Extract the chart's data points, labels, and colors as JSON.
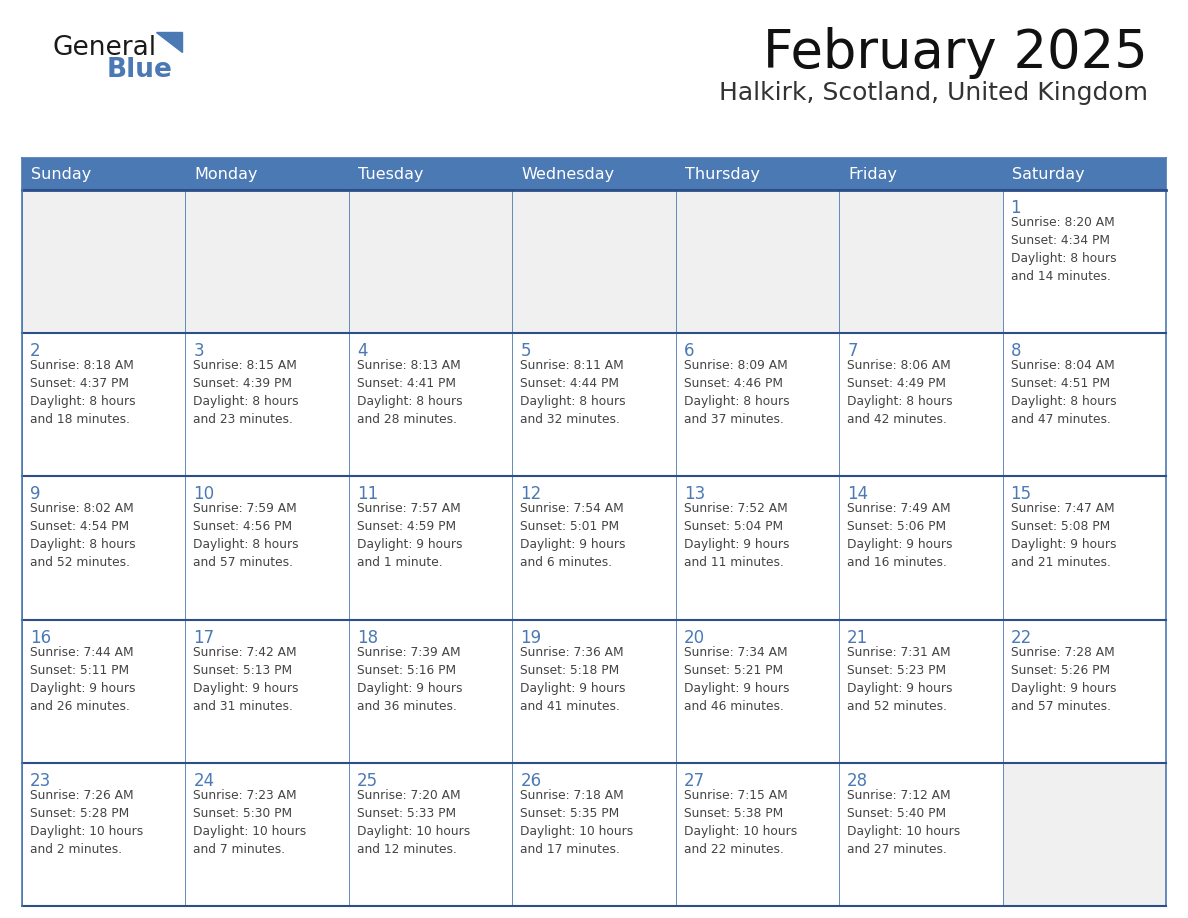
{
  "title": "February 2025",
  "subtitle": "Halkirk, Scotland, United Kingdom",
  "header_color": "#4b79b4",
  "header_text_color": "#FFFFFF",
  "cell_bg_white": "#FFFFFF",
  "cell_bg_gray": "#F0F0F0",
  "cell_border_color": "#4b79b4",
  "row_separator_color": "#2c4f8a",
  "day_number_color": "#4b79b4",
  "cell_text_color": "#444444",
  "background_color": "#FFFFFF",
  "days_of_week": [
    "Sunday",
    "Monday",
    "Tuesday",
    "Wednesday",
    "Thursday",
    "Friday",
    "Saturday"
  ],
  "weeks": [
    [
      {
        "day": null,
        "info": null
      },
      {
        "day": null,
        "info": null
      },
      {
        "day": null,
        "info": null
      },
      {
        "day": null,
        "info": null
      },
      {
        "day": null,
        "info": null
      },
      {
        "day": null,
        "info": null
      },
      {
        "day": 1,
        "info": "Sunrise: 8:20 AM\nSunset: 4:34 PM\nDaylight: 8 hours\nand 14 minutes."
      }
    ],
    [
      {
        "day": 2,
        "info": "Sunrise: 8:18 AM\nSunset: 4:37 PM\nDaylight: 8 hours\nand 18 minutes."
      },
      {
        "day": 3,
        "info": "Sunrise: 8:15 AM\nSunset: 4:39 PM\nDaylight: 8 hours\nand 23 minutes."
      },
      {
        "day": 4,
        "info": "Sunrise: 8:13 AM\nSunset: 4:41 PM\nDaylight: 8 hours\nand 28 minutes."
      },
      {
        "day": 5,
        "info": "Sunrise: 8:11 AM\nSunset: 4:44 PM\nDaylight: 8 hours\nand 32 minutes."
      },
      {
        "day": 6,
        "info": "Sunrise: 8:09 AM\nSunset: 4:46 PM\nDaylight: 8 hours\nand 37 minutes."
      },
      {
        "day": 7,
        "info": "Sunrise: 8:06 AM\nSunset: 4:49 PM\nDaylight: 8 hours\nand 42 minutes."
      },
      {
        "day": 8,
        "info": "Sunrise: 8:04 AM\nSunset: 4:51 PM\nDaylight: 8 hours\nand 47 minutes."
      }
    ],
    [
      {
        "day": 9,
        "info": "Sunrise: 8:02 AM\nSunset: 4:54 PM\nDaylight: 8 hours\nand 52 minutes."
      },
      {
        "day": 10,
        "info": "Sunrise: 7:59 AM\nSunset: 4:56 PM\nDaylight: 8 hours\nand 57 minutes."
      },
      {
        "day": 11,
        "info": "Sunrise: 7:57 AM\nSunset: 4:59 PM\nDaylight: 9 hours\nand 1 minute."
      },
      {
        "day": 12,
        "info": "Sunrise: 7:54 AM\nSunset: 5:01 PM\nDaylight: 9 hours\nand 6 minutes."
      },
      {
        "day": 13,
        "info": "Sunrise: 7:52 AM\nSunset: 5:04 PM\nDaylight: 9 hours\nand 11 minutes."
      },
      {
        "day": 14,
        "info": "Sunrise: 7:49 AM\nSunset: 5:06 PM\nDaylight: 9 hours\nand 16 minutes."
      },
      {
        "day": 15,
        "info": "Sunrise: 7:47 AM\nSunset: 5:08 PM\nDaylight: 9 hours\nand 21 minutes."
      }
    ],
    [
      {
        "day": 16,
        "info": "Sunrise: 7:44 AM\nSunset: 5:11 PM\nDaylight: 9 hours\nand 26 minutes."
      },
      {
        "day": 17,
        "info": "Sunrise: 7:42 AM\nSunset: 5:13 PM\nDaylight: 9 hours\nand 31 minutes."
      },
      {
        "day": 18,
        "info": "Sunrise: 7:39 AM\nSunset: 5:16 PM\nDaylight: 9 hours\nand 36 minutes."
      },
      {
        "day": 19,
        "info": "Sunrise: 7:36 AM\nSunset: 5:18 PM\nDaylight: 9 hours\nand 41 minutes."
      },
      {
        "day": 20,
        "info": "Sunrise: 7:34 AM\nSunset: 5:21 PM\nDaylight: 9 hours\nand 46 minutes."
      },
      {
        "day": 21,
        "info": "Sunrise: 7:31 AM\nSunset: 5:23 PM\nDaylight: 9 hours\nand 52 minutes."
      },
      {
        "day": 22,
        "info": "Sunrise: 7:28 AM\nSunset: 5:26 PM\nDaylight: 9 hours\nand 57 minutes."
      }
    ],
    [
      {
        "day": 23,
        "info": "Sunrise: 7:26 AM\nSunset: 5:28 PM\nDaylight: 10 hours\nand 2 minutes."
      },
      {
        "day": 24,
        "info": "Sunrise: 7:23 AM\nSunset: 5:30 PM\nDaylight: 10 hours\nand 7 minutes."
      },
      {
        "day": 25,
        "info": "Sunrise: 7:20 AM\nSunset: 5:33 PM\nDaylight: 10 hours\nand 12 minutes."
      },
      {
        "day": 26,
        "info": "Sunrise: 7:18 AM\nSunset: 5:35 PM\nDaylight: 10 hours\nand 17 minutes."
      },
      {
        "day": 27,
        "info": "Sunrise: 7:15 AM\nSunset: 5:38 PM\nDaylight: 10 hours\nand 22 minutes."
      },
      {
        "day": 28,
        "info": "Sunrise: 7:12 AM\nSunset: 5:40 PM\nDaylight: 10 hours\nand 27 minutes."
      },
      {
        "day": null,
        "info": null
      }
    ]
  ],
  "logo_text_general": "General",
  "logo_text_blue": "Blue",
  "logo_color_general": "#1a1a1a",
  "logo_color_blue": "#4b79b4",
  "logo_triangle_color": "#4b79b4",
  "title_fontsize": 38,
  "subtitle_fontsize": 18,
  "header_fontsize": 11.5,
  "day_num_fontsize": 12,
  "cell_text_fontsize": 8.8
}
